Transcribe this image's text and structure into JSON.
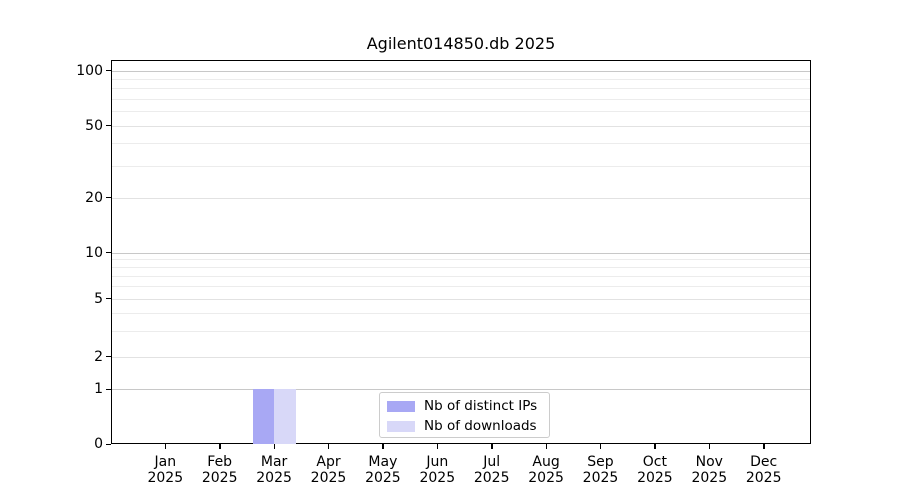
{
  "figure": {
    "title": "Agilent014850.db 2025"
  },
  "chart_data": {
    "type": "bar",
    "title": "Agilent014850.db 2025",
    "x_months": [
      "Jan",
      "Feb",
      "Mar",
      "Apr",
      "May",
      "Jun",
      "Jul",
      "Aug",
      "Sep",
      "Oct",
      "Nov",
      "Dec"
    ],
    "x_year": "2025",
    "categories": [
      "Jan 2025",
      "Feb 2025",
      "Mar 2025",
      "Apr 2025",
      "May 2025",
      "Jun 2025",
      "Jul 2025",
      "Aug 2025",
      "Sep 2025",
      "Oct 2025",
      "Nov 2025",
      "Dec 2025"
    ],
    "series": [
      {
        "name": "Nb of distinct IPs",
        "color": "#a8a8f4",
        "values": [
          0,
          0,
          1,
          0,
          0,
          0,
          0,
          0,
          0,
          0,
          0,
          0
        ]
      },
      {
        "name": "Nb of downloads",
        "color": "#d8d8f8",
        "values": [
          0,
          0,
          1,
          0,
          0,
          0,
          0,
          0,
          0,
          0,
          0,
          0
        ]
      }
    ],
    "yscale": "symlog",
    "ylim": [
      0,
      115
    ],
    "y_major_ticks": [
      0,
      1,
      2,
      5,
      10,
      20,
      50,
      100
    ],
    "y_minor_ticks": [
      3,
      4,
      6,
      7,
      8,
      9,
      30,
      40,
      60,
      70,
      80,
      90
    ],
    "grid": true,
    "legend_position": "lower center"
  },
  "legend": {
    "items": [
      {
        "label": "Nb of distinct IPs",
        "color": "#a8a8f4"
      },
      {
        "label": "Nb of downloads",
        "color": "#d8d8f8"
      }
    ]
  },
  "colors": {
    "background": "#ffffff",
    "spine": "#000000",
    "grid_decade": "#c8c8c8",
    "grid_labeled": "#e2e2e2",
    "grid_minor": "#ececec",
    "legend_border": "#cccccc",
    "bar_distinct_ips": "#a8a8f4",
    "bar_downloads": "#d8d8f8"
  }
}
